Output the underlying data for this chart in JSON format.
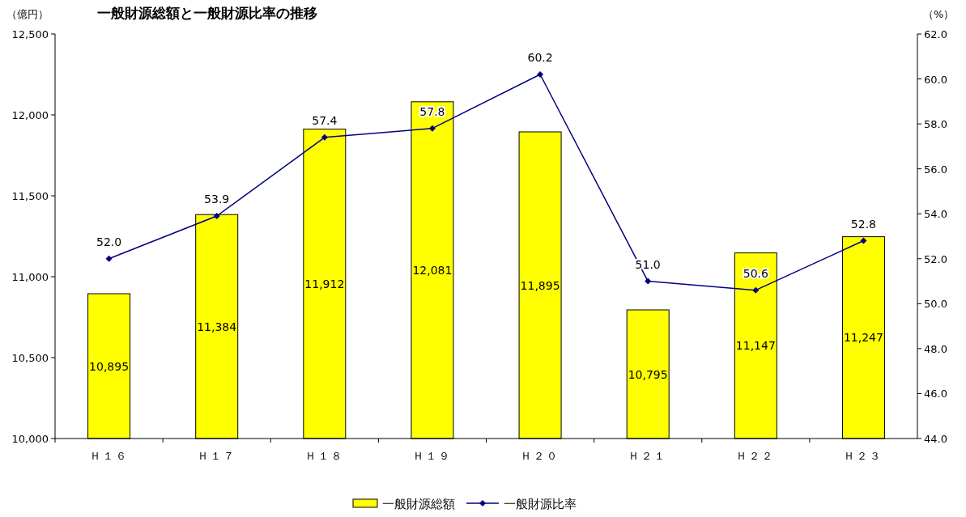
{
  "chart_data": {
    "type": "bar",
    "title": "一般財源総額と一般財源比率の推移",
    "ylabel": "（億円）",
    "y2label": "（%）",
    "categories": [
      "Ｈ１６",
      "Ｈ１７",
      "Ｈ１８",
      "Ｈ１９",
      "Ｈ２０",
      "Ｈ２１",
      "Ｈ２２",
      "Ｈ２３"
    ],
    "series": [
      {
        "name": "一般財源総額",
        "color": "#ffff00",
        "values": [
          10895,
          11384,
          11912,
          12081,
          11895,
          10795,
          11147,
          11247
        ],
        "value_labels": [
          "10,895",
          "11,384",
          "11,912",
          "12,081",
          "11,895",
          "10,795",
          "11,147",
          "11,247"
        ]
      },
      {
        "name": "一般財源比率",
        "type": "line",
        "axis": "y2",
        "color": "#000080",
        "marker": "diamond",
        "values": [
          52.0,
          53.9,
          57.4,
          57.8,
          60.2,
          51.0,
          50.6,
          52.8
        ],
        "value_labels": [
          "52.0",
          "53.9",
          "57.4",
          "57.8",
          "60.2",
          "51.0",
          "50.6",
          "52.8"
        ]
      }
    ],
    "ylim": [
      10000,
      12500
    ],
    "yticks": [
      {
        "value": 10000,
        "label": "10,000"
      },
      {
        "value": 10500,
        "label": "10,500"
      },
      {
        "value": 11000,
        "label": "11,000"
      },
      {
        "value": 11500,
        "label": "11,500"
      },
      {
        "value": 12000,
        "label": "12,000"
      },
      {
        "value": 12500,
        "label": "12,500"
      }
    ],
    "y2lim": [
      44,
      62
    ],
    "y2ticks": [
      {
        "value": 44,
        "label": "44.0"
      },
      {
        "value": 46,
        "label": "46.0"
      },
      {
        "value": 48,
        "label": "48.0"
      },
      {
        "value": 50,
        "label": "50.0"
      },
      {
        "value": 52,
        "label": "52.0"
      },
      {
        "value": 54,
        "label": "54.0"
      },
      {
        "value": 56,
        "label": "56.0"
      },
      {
        "value": 58,
        "label": "58.0"
      },
      {
        "value": 60,
        "label": "60.0"
      },
      {
        "value": 62,
        "label": "62.0"
      }
    ],
    "legend": "bottom",
    "grid": false
  }
}
